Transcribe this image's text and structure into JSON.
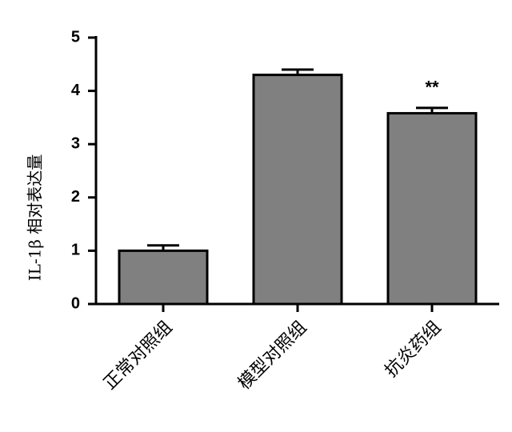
{
  "chart_data": {
    "type": "bar",
    "y_label": "IL-1β 相对表达量",
    "categories": [
      "正常对照组",
      "模型对照组",
      "抗炎药组"
    ],
    "values": [
      1.0,
      4.3,
      3.58
    ],
    "errors": [
      0.1,
      0.1,
      0.1
    ],
    "color": "#808080",
    "annotations": [
      {
        "text": "**",
        "category": 2
      }
    ],
    "ylim": [
      0,
      5
    ],
    "yticks": [
      0,
      1,
      2,
      3,
      4,
      5
    ]
  }
}
